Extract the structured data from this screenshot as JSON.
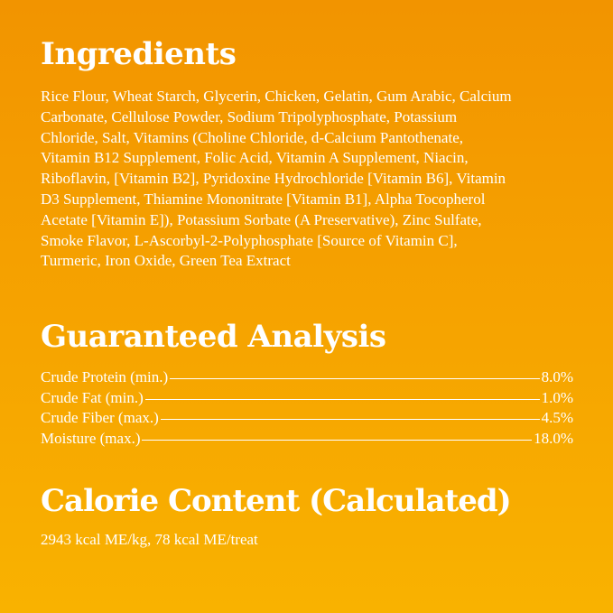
{
  "ingredients": {
    "title": "Ingredients",
    "lines": [
      "Rice Flour, Wheat Starch, Glycerin, Chicken, Gelatin, Gum Arabic, Calcium",
      "Carbonate, Cellulose Powder, Sodium Tripolyphosphate, Potassium",
      "Chloride, Salt, Vitamins (Choline Chloride, d-Calcium Pantothenate,",
      "Vitamin B12 Supplement, Folic Acid, Vitamin A Supplement, Niacin,",
      "Riboflavin, [Vitamin B2], Pyridoxine Hydrochloride [Vitamin B6], Vitamin",
      "D3 Supplement, Thiamine Mononitrate [Vitamin B1], Alpha Tocopherol",
      "Acetate [Vitamin E]), Potassium Sorbate (A Preservative), Zinc Sulfate,",
      "Smoke Flavor, L-Ascorbyl-2-Polyphosphate [Source of Vitamin C],",
      "Turmeric, Iron Oxide, Green Tea Extract"
    ]
  },
  "analysis": {
    "title": "Guaranteed Analysis",
    "rows": [
      {
        "label": "Crude Protein (min.)",
        "value": "8.0%"
      },
      {
        "label": "Crude Fat (min.)",
        "value": "1.0%"
      },
      {
        "label": "Crude Fiber (max.)",
        "value": "4.5%"
      },
      {
        "label": "Moisture (max.)",
        "value": "18.0%"
      }
    ]
  },
  "calorie": {
    "title": "Calorie Content (Calculated)",
    "text": "2943 kcal ME/kg, 78 kcal ME/treat"
  },
  "colors": {
    "background_top": "#F29400",
    "background_bottom": "#F9B200",
    "text": "#FFFFFF"
  }
}
